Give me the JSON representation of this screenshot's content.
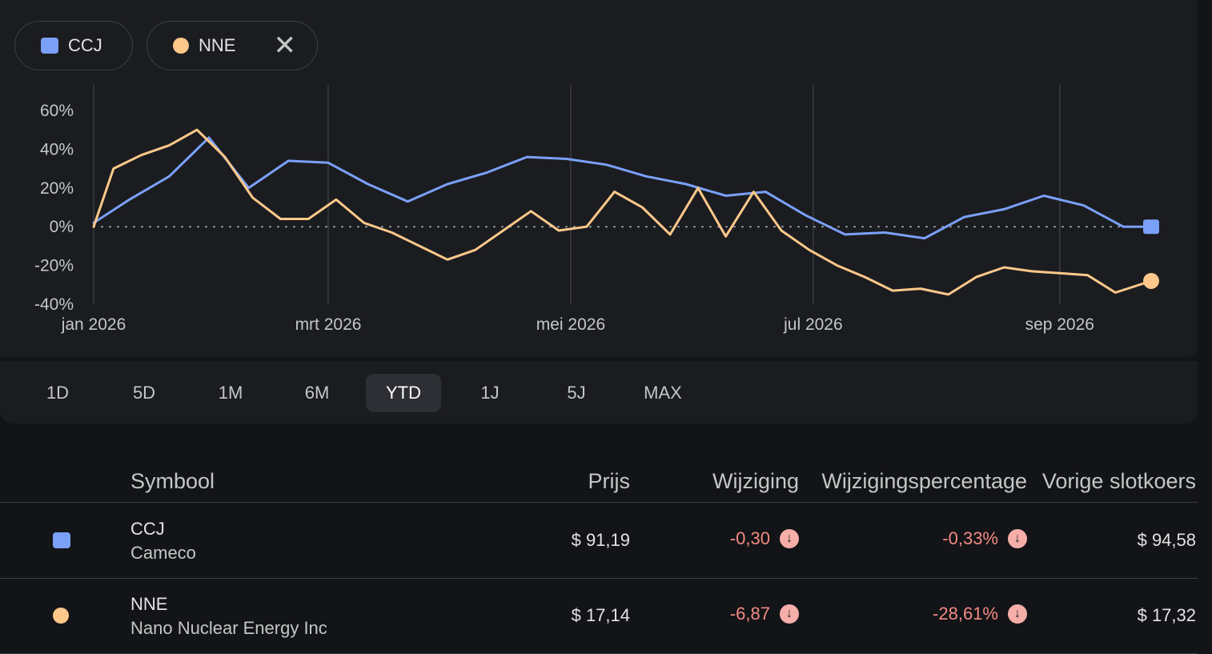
{
  "colors": {
    "ccj": "#7aa0f8",
    "nne": "#fdc88a",
    "negative": "#f28b82"
  },
  "chips": [
    {
      "symbol": "CCJ",
      "marker": "square"
    },
    {
      "symbol": "NNE",
      "marker": "circle",
      "close_icon": "close-icon",
      "close_glyph": "✕"
    }
  ],
  "chart_data": {
    "type": "line",
    "y_tick_labels": [
      "60%",
      "40%",
      "20%",
      "0%",
      "-20%",
      "-40%"
    ],
    "y_ticks": [
      60,
      40,
      20,
      0,
      -20,
      -40
    ],
    "ylim": [
      -40,
      60
    ],
    "x_tick_labels": [
      "jan 2026",
      "mrt 2026",
      "mei 2026",
      "jul 2026",
      "sep 2026"
    ],
    "x_ticks": [
      "2026-01-01",
      "2026-03-01",
      "2026-05-01",
      "2026-07-01",
      "2026-09-01"
    ],
    "xlim": [
      "2026-01-01",
      "2026-09-24"
    ],
    "grid": "vertical lines at x ticks",
    "baseline": 0,
    "series": [
      {
        "name": "CCJ",
        "color": "#7aa0f8",
        "end_marker": "square",
        "x": [
          "2026-01-01",
          "2026-01-10",
          "2026-01-20",
          "2026-01-30",
          "2026-02-09",
          "2026-02-19",
          "2026-03-01",
          "2026-03-11",
          "2026-03-21",
          "2026-03-31",
          "2026-04-10",
          "2026-04-20",
          "2026-04-30",
          "2026-05-10",
          "2026-05-20",
          "2026-05-30",
          "2026-06-09",
          "2026-06-19",
          "2026-06-29",
          "2026-07-09",
          "2026-07-19",
          "2026-07-29",
          "2026-08-08",
          "2026-08-18",
          "2026-08-28",
          "2026-09-07",
          "2026-09-17",
          "2026-09-24"
        ],
        "y": [
          2,
          14,
          26,
          46,
          20,
          34,
          33,
          22,
          13,
          22,
          28,
          36,
          35,
          32,
          26,
          22,
          16,
          18,
          6,
          -4,
          -3,
          -6,
          5,
          9,
          16,
          11,
          0,
          0
        ]
      },
      {
        "name": "NNE",
        "color": "#fdc88a",
        "end_marker": "circle",
        "x": [
          "2026-01-01",
          "2026-01-06",
          "2026-01-13",
          "2026-01-20",
          "2026-01-27",
          "2026-02-03",
          "2026-02-10",
          "2026-02-17",
          "2026-02-24",
          "2026-03-03",
          "2026-03-10",
          "2026-03-17",
          "2026-03-24",
          "2026-03-31",
          "2026-04-07",
          "2026-04-14",
          "2026-04-21",
          "2026-04-28",
          "2026-05-05",
          "2026-05-12",
          "2026-05-19",
          "2026-05-26",
          "2026-06-02",
          "2026-06-09",
          "2026-06-16",
          "2026-06-23",
          "2026-06-30",
          "2026-07-07",
          "2026-07-14",
          "2026-07-21",
          "2026-07-28",
          "2026-08-04",
          "2026-08-11",
          "2026-08-18",
          "2026-08-25",
          "2026-09-01",
          "2026-09-08",
          "2026-09-15",
          "2026-09-24"
        ],
        "y": [
          0,
          30,
          37,
          42,
          50,
          36,
          15,
          4,
          4,
          14,
          2,
          -3,
          -10,
          -17,
          -12,
          -2,
          8,
          -2,
          0,
          18,
          10,
          -4,
          20,
          -5,
          18,
          -2,
          -12,
          -20,
          -26,
          -33,
          -32,
          -35,
          -26,
          -21,
          -23,
          -24,
          -25,
          -34,
          -28
        ]
      }
    ]
  },
  "ranges": [
    "1D",
    "5D",
    "1M",
    "6M",
    "YTD",
    "1J",
    "5J",
    "MAX"
  ],
  "active_range": "YTD",
  "table": {
    "headers": {
      "symbol": "Symbool",
      "price": "Prijs",
      "change": "Wijziging",
      "change_pct": "Wijzigingspercentage",
      "prev_close": "Vorige slotkoers"
    },
    "rows": [
      {
        "marker": "square",
        "symbol": "CCJ",
        "name": "Cameco",
        "price": "$ 91,19",
        "change": "-0,30",
        "change_pct": "-0,33%",
        "prev_close": "$ 94,58",
        "trend_icon": "arrow-down-circle-icon"
      },
      {
        "marker": "circle",
        "symbol": "NNE",
        "name": "Nano Nuclear Energy Inc",
        "price": "$ 17,14",
        "change": "-6,87",
        "change_pct": "-28,61%",
        "prev_close": "$ 17,32",
        "trend_icon": "arrow-down-circle-icon"
      }
    ]
  }
}
